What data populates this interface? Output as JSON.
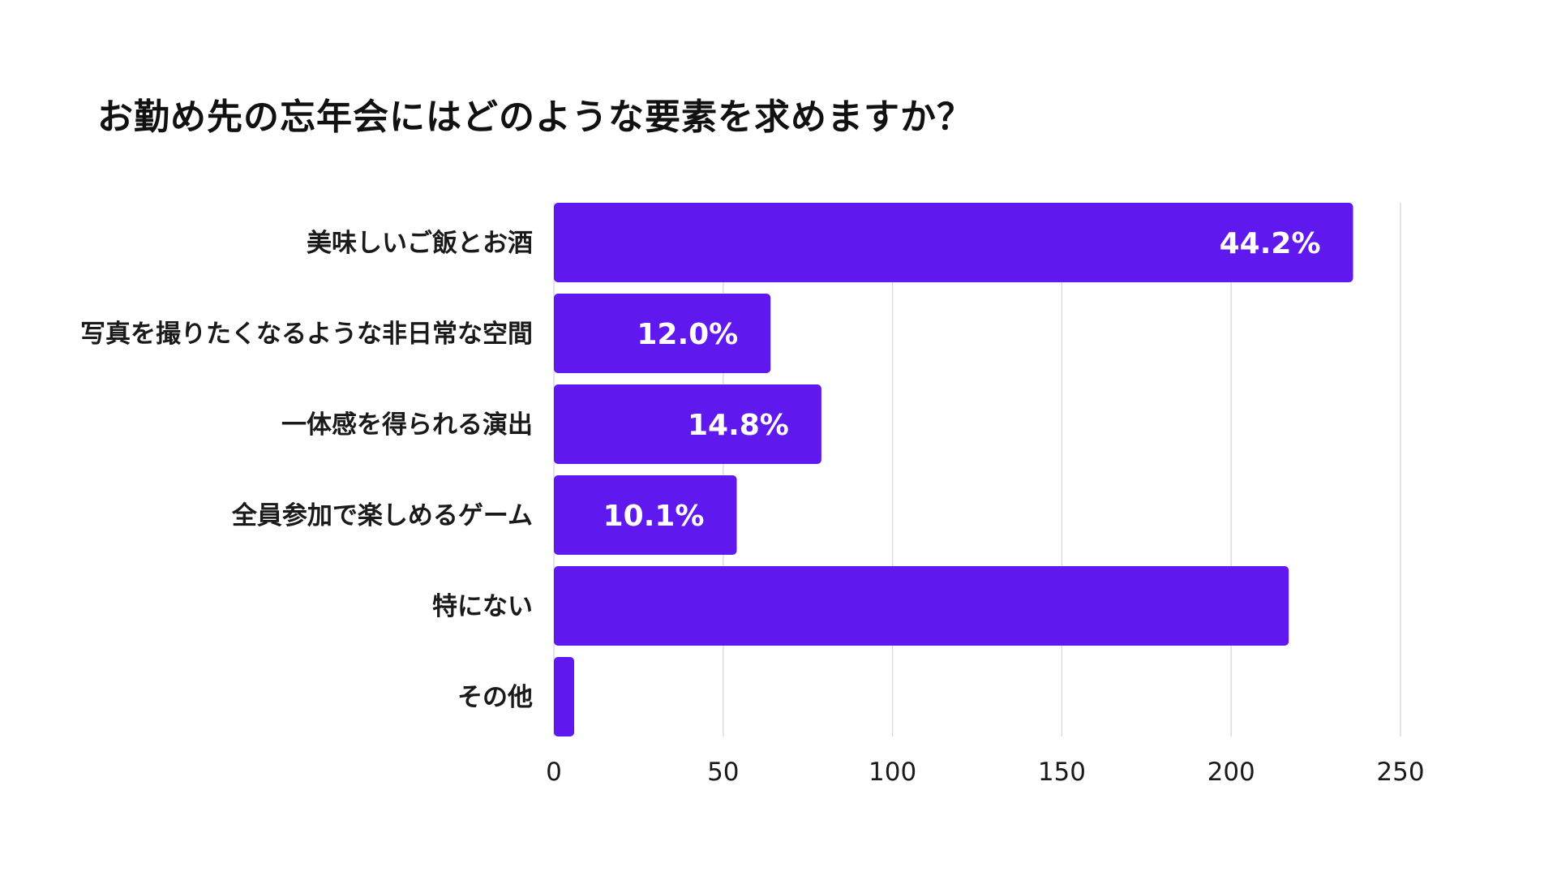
{
  "chart_data": {
    "type": "bar",
    "orientation": "horizontal",
    "title": "お勤め先の忘年会にはどのような要素を求めますか？",
    "categories": [
      "美味しいご飯とお酒",
      "写真を撮りたくなるような非日常な空間",
      "一体感を得られる演出",
      "全員参加で楽しめるゲーム",
      "特にない",
      "その他"
    ],
    "values": [
      236,
      64,
      79,
      54,
      217,
      6
    ],
    "data_labels": [
      "44.2%",
      "12.0%",
      "14.8%",
      "10.1%",
      "",
      ""
    ],
    "xlim": [
      0,
      250
    ],
    "xticks": [
      0,
      50,
      100,
      150,
      200,
      250
    ],
    "tick_labels": [
      "0",
      "50",
      "100",
      "150",
      "200",
      "250"
    ],
    "grid": true,
    "legend": "none",
    "colors": {
      "bar": "#5f19ef",
      "grid": "#dcdcdc",
      "data_label": "#ffffff"
    }
  }
}
